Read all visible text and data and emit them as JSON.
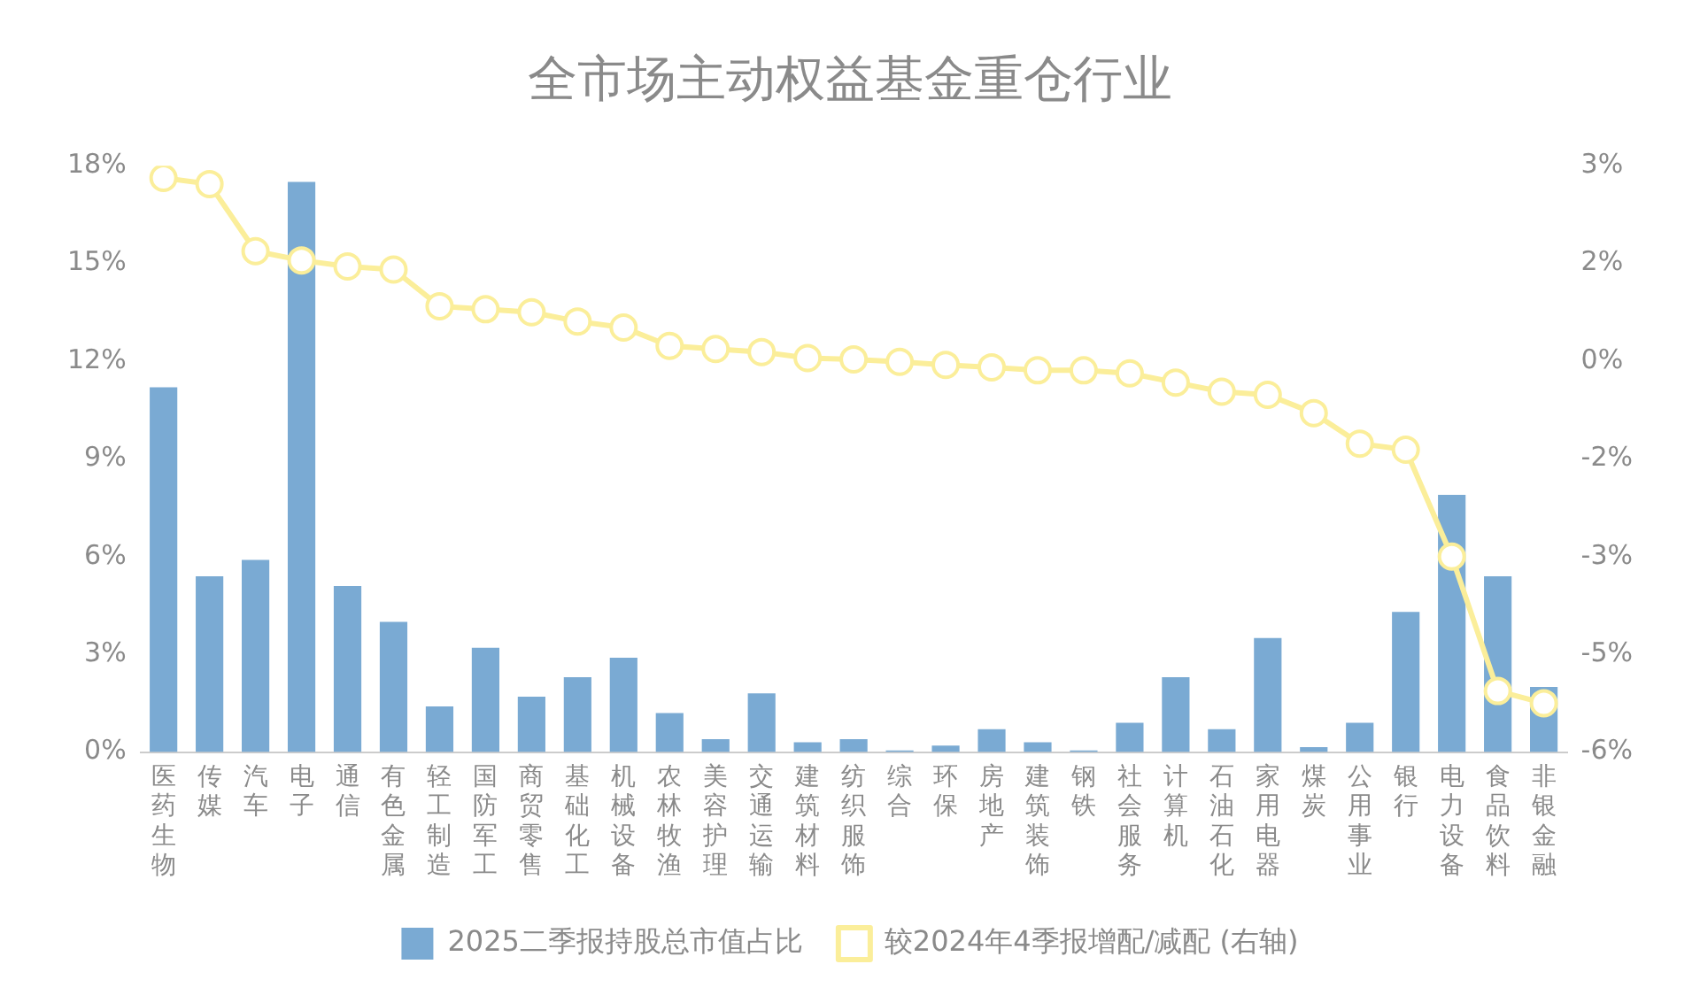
{
  "chart_data": {
    "type": "bar",
    "title": "全市场主动权益基金重仓行业",
    "categories": [
      "医药生物",
      "传媒",
      "汽车",
      "电子",
      "通信",
      "有色金属",
      "轻工制造",
      "国防军工",
      "商贸零售",
      "基础化工",
      "机械设备",
      "农林牧渔",
      "美容护理",
      "交通运输",
      "建筑材料",
      "纺织服饰",
      "综合",
      "环保",
      "房地产",
      "建筑装饰",
      "钢铁",
      "社会服务",
      "计算机",
      "石油石化",
      "家用电器",
      "煤炭",
      "公用事业",
      "银行",
      "电力设备",
      "食品饮料",
      "非银金融"
    ],
    "series": [
      {
        "name": "2025二季报持股总市值占比",
        "color": "#7aaad3",
        "values": [
          11.2,
          5.4,
          5.9,
          17.5,
          5.1,
          4.0,
          1.4,
          3.2,
          1.7,
          2.3,
          2.9,
          1.2,
          0.4,
          1.8,
          0.3,
          0.4,
          0.05,
          0.2,
          0.7,
          0.3,
          0.05,
          0.9,
          2.3,
          0.7,
          3.5,
          0.15,
          0.9,
          4.3,
          7.9,
          5.4,
          2.0
        ]
      },
      {
        "name": "较2024年4季报增配/减配 (右轴)",
        "type": "line",
        "axis": "y2",
        "color": "#fbee9a",
        "values": [
          3.0,
          2.9,
          1.8,
          1.65,
          1.55,
          1.5,
          0.9,
          0.85,
          0.8,
          0.65,
          0.55,
          0.25,
          0.2,
          0.15,
          0.05,
          0.03,
          -0.01,
          -0.06,
          -0.1,
          -0.15,
          -0.15,
          -0.2,
          -0.35,
          -0.5,
          -0.55,
          -0.85,
          -1.35,
          -1.45,
          -3.2,
          -5.4,
          -5.6
        ]
      }
    ],
    "ylim": [
      0,
      18
    ],
    "yticks": [
      {
        "value": 0,
        "label": "0%"
      },
      {
        "value": 3,
        "label": "3%"
      },
      {
        "value": 6,
        "label": "6%"
      },
      {
        "value": 9,
        "label": "9%"
      },
      {
        "value": 12,
        "label": "12%"
      },
      {
        "value": 15,
        "label": "15%"
      },
      {
        "value": 18,
        "label": "18%"
      }
    ],
    "y2lim": [
      -6.4,
      3.2
    ],
    "y2ticks": [
      {
        "value": -6.4,
        "label": "-6%"
      },
      {
        "value": -4.8,
        "label": "-5%"
      },
      {
        "value": -3.2,
        "label": "-3%"
      },
      {
        "value": -1.6,
        "label": "-2%"
      },
      {
        "value": 0,
        "label": "0%"
      },
      {
        "value": 1.6,
        "label": "2%"
      },
      {
        "value": 3.2,
        "label": "3%"
      }
    ],
    "grid": false,
    "legend": "bottom",
    "marker": "circle",
    "line_style": "solid"
  }
}
